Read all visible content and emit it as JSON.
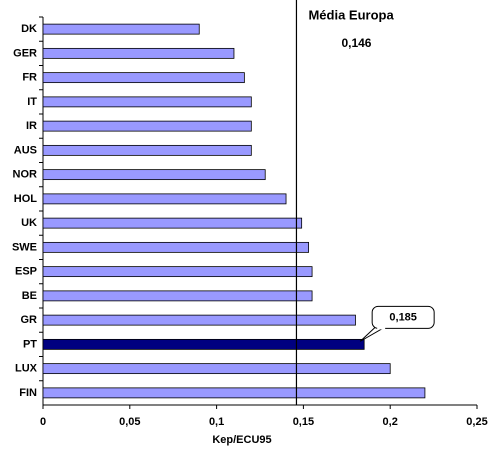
{
  "chart_data": {
    "type": "barh",
    "categories": [
      "DK",
      "GER",
      "FR",
      "IT",
      "IR",
      "AUS",
      "NOR",
      "HOL",
      "UK",
      "SWE",
      "ESP",
      "BE",
      "GR",
      "PT",
      "LUX",
      "FIN"
    ],
    "values": [
      0.09,
      0.11,
      0.116,
      0.12,
      0.12,
      0.12,
      0.128,
      0.14,
      0.149,
      0.153,
      0.155,
      0.155,
      0.18,
      0.185,
      0.2,
      0.22
    ],
    "value_labels": [
      null,
      null,
      null,
      null,
      null,
      null,
      null,
      null,
      null,
      null,
      null,
      null,
      null,
      "0,185",
      null,
      null
    ],
    "colors": [
      "#9999ff",
      "#9999ff",
      "#9999ff",
      "#9999ff",
      "#9999ff",
      "#9999ff",
      "#9999ff",
      "#9999ff",
      "#9999ff",
      "#9999ff",
      "#9999ff",
      "#9999ff",
      "#9999ff",
      "#000080",
      "#9999ff",
      "#9999ff"
    ],
    "xlabel": "Kep/ECU95",
    "xlim": [
      0,
      0.25
    ],
    "xticks": [
      0,
      {
        "value": 0.05,
        "label": "0,05"
      },
      {
        "value": 0.1,
        "label": "0,1"
      },
      {
        "value": 0.15,
        "label": "0,15"
      },
      {
        "value": 0.2,
        "label": "0,2"
      },
      {
        "value": 0.25,
        "label": "0,25"
      }
    ],
    "reference_line": {
      "name": "Média Europa",
      "value": 0.146,
      "label": "0,146"
    }
  }
}
